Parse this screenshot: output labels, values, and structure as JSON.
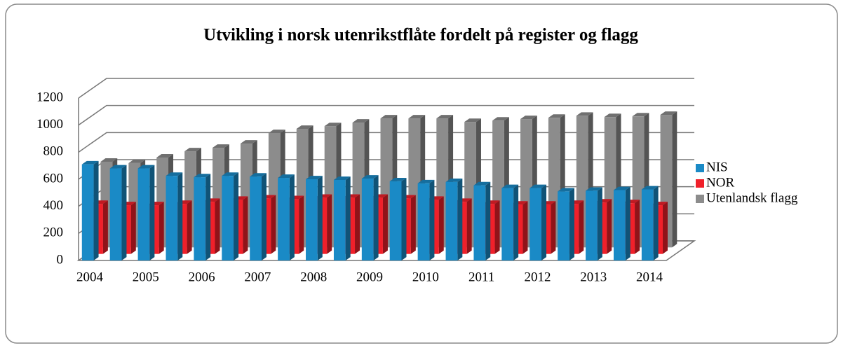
{
  "chart_data": {
    "type": "bar3d",
    "title": "Utvikling i norsk utenrikstflåte fordelt på register og flagg",
    "categories": [
      "2004",
      null,
      "2005",
      null,
      "2006",
      null,
      "2007",
      null,
      "2008",
      null,
      "2009",
      null,
      "2010",
      null,
      "2011",
      null,
      "2012",
      null,
      "2013",
      null,
      "2014"
    ],
    "series": [
      {
        "name": "NIS",
        "color": "#1a8ac6",
        "values": [
          710,
          680,
          680,
          625,
          615,
          625,
          620,
          610,
          600,
          595,
          605,
          585,
          570,
          580,
          555,
          535,
          535,
          510,
          515,
          520,
          525
        ]
      },
      {
        "name": "NOR",
        "color": "#f0202a",
        "values": [
          370,
          360,
          360,
          370,
          385,
          400,
          410,
          405,
          415,
          415,
          415,
          410,
          400,
          385,
          370,
          365,
          365,
          370,
          380,
          375,
          360
        ]
      },
      {
        "name": "Utenlandsk flagg",
        "color": "#8c8c8c",
        "values": [
          633,
          623,
          664,
          710,
          736,
          767,
          845,
          876,
          896,
          922,
          953,
          953,
          953,
          927,
          937,
          948,
          958,
          973,
          963,
          968,
          979
        ]
      }
    ],
    "ylim": [
      0,
      1200
    ],
    "yticks": [
      0,
      200,
      400,
      600,
      800,
      1000,
      1200
    ],
    "grid": true,
    "legend": "right"
  }
}
